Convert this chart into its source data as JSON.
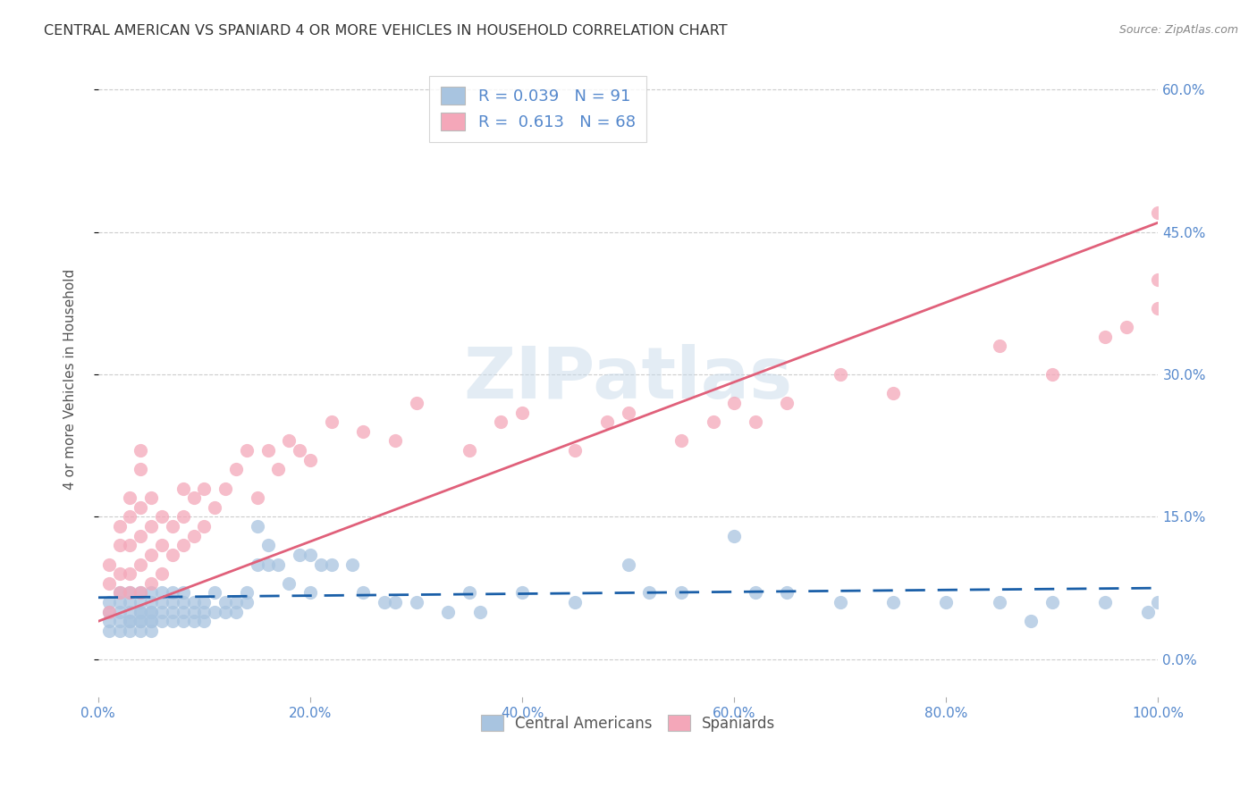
{
  "title": "CENTRAL AMERICAN VS SPANIARD 4 OR MORE VEHICLES IN HOUSEHOLD CORRELATION CHART",
  "source": "Source: ZipAtlas.com",
  "ylabel": "4 or more Vehicles in Household",
  "watermark": "ZIPatlas",
  "legend": {
    "ca_r": "0.039",
    "ca_n": "91",
    "sp_r": "0.613",
    "sp_n": "68"
  },
  "xlim": [
    0,
    100
  ],
  "ylim": [
    -4,
    63
  ],
  "yticks": [
    0,
    15,
    30,
    45,
    60
  ],
  "xticks": [
    0,
    20,
    40,
    60,
    80,
    100
  ],
  "ca_color": "#a8c4e0",
  "sp_color": "#f4a7b9",
  "ca_line_color": "#1a5fa8",
  "sp_line_color": "#e0607a",
  "background_color": "#ffffff",
  "grid_color": "#cccccc",
  "title_color": "#333333",
  "tick_label_color": "#5588cc",
  "ca_scatter_x": [
    1,
    1,
    1,
    1,
    2,
    2,
    2,
    2,
    2,
    3,
    3,
    3,
    3,
    3,
    3,
    4,
    4,
    4,
    4,
    4,
    4,
    4,
    5,
    5,
    5,
    5,
    5,
    5,
    5,
    6,
    6,
    6,
    6,
    7,
    7,
    7,
    7,
    8,
    8,
    8,
    8,
    9,
    9,
    9,
    10,
    10,
    10,
    11,
    11,
    12,
    12,
    13,
    13,
    14,
    14,
    15,
    15,
    16,
    16,
    17,
    18,
    19,
    20,
    20,
    21,
    22,
    24,
    25,
    27,
    28,
    30,
    33,
    35,
    36,
    40,
    45,
    50,
    52,
    55,
    60,
    62,
    65,
    70,
    75,
    80,
    85,
    88,
    90,
    95,
    99,
    100
  ],
  "ca_scatter_y": [
    3,
    5,
    6,
    4,
    3,
    5,
    4,
    6,
    7,
    3,
    4,
    5,
    6,
    4,
    7,
    3,
    4,
    5,
    6,
    7,
    4,
    5,
    3,
    5,
    6,
    4,
    7,
    5,
    4,
    4,
    6,
    5,
    7,
    5,
    6,
    4,
    7,
    5,
    6,
    4,
    7,
    5,
    6,
    4,
    5,
    6,
    4,
    5,
    7,
    5,
    6,
    6,
    5,
    7,
    6,
    14,
    10,
    10,
    12,
    10,
    8,
    11,
    11,
    7,
    10,
    10,
    10,
    7,
    6,
    6,
    6,
    5,
    7,
    5,
    7,
    6,
    10,
    7,
    7,
    13,
    7,
    7,
    6,
    6,
    6,
    6,
    4,
    6,
    6,
    5,
    6
  ],
  "sp_scatter_x": [
    1,
    1,
    1,
    2,
    2,
    2,
    2,
    3,
    3,
    3,
    3,
    3,
    4,
    4,
    4,
    4,
    4,
    4,
    5,
    5,
    5,
    5,
    6,
    6,
    6,
    7,
    7,
    8,
    8,
    8,
    9,
    9,
    10,
    10,
    11,
    12,
    13,
    14,
    15,
    16,
    17,
    18,
    19,
    20,
    22,
    25,
    28,
    30,
    35,
    38,
    40,
    45,
    48,
    50,
    55,
    58,
    60,
    62,
    65,
    70,
    75,
    85,
    90,
    95,
    97,
    100,
    100,
    100
  ],
  "sp_scatter_y": [
    5,
    8,
    10,
    7,
    9,
    12,
    14,
    7,
    9,
    12,
    15,
    17,
    7,
    10,
    13,
    16,
    20,
    22,
    8,
    11,
    14,
    17,
    9,
    12,
    15,
    11,
    14,
    12,
    15,
    18,
    13,
    17,
    14,
    18,
    16,
    18,
    20,
    22,
    17,
    22,
    20,
    23,
    22,
    21,
    25,
    24,
    23,
    27,
    22,
    25,
    26,
    22,
    25,
    26,
    23,
    25,
    27,
    25,
    27,
    30,
    28,
    33,
    30,
    34,
    35,
    37,
    40,
    47
  ],
  "ca_trend_x": [
    0,
    100
  ],
  "ca_trend_y": [
    6.5,
    7.5
  ],
  "sp_trend_x": [
    0,
    100
  ],
  "sp_trend_y": [
    4.0,
    46.0
  ]
}
